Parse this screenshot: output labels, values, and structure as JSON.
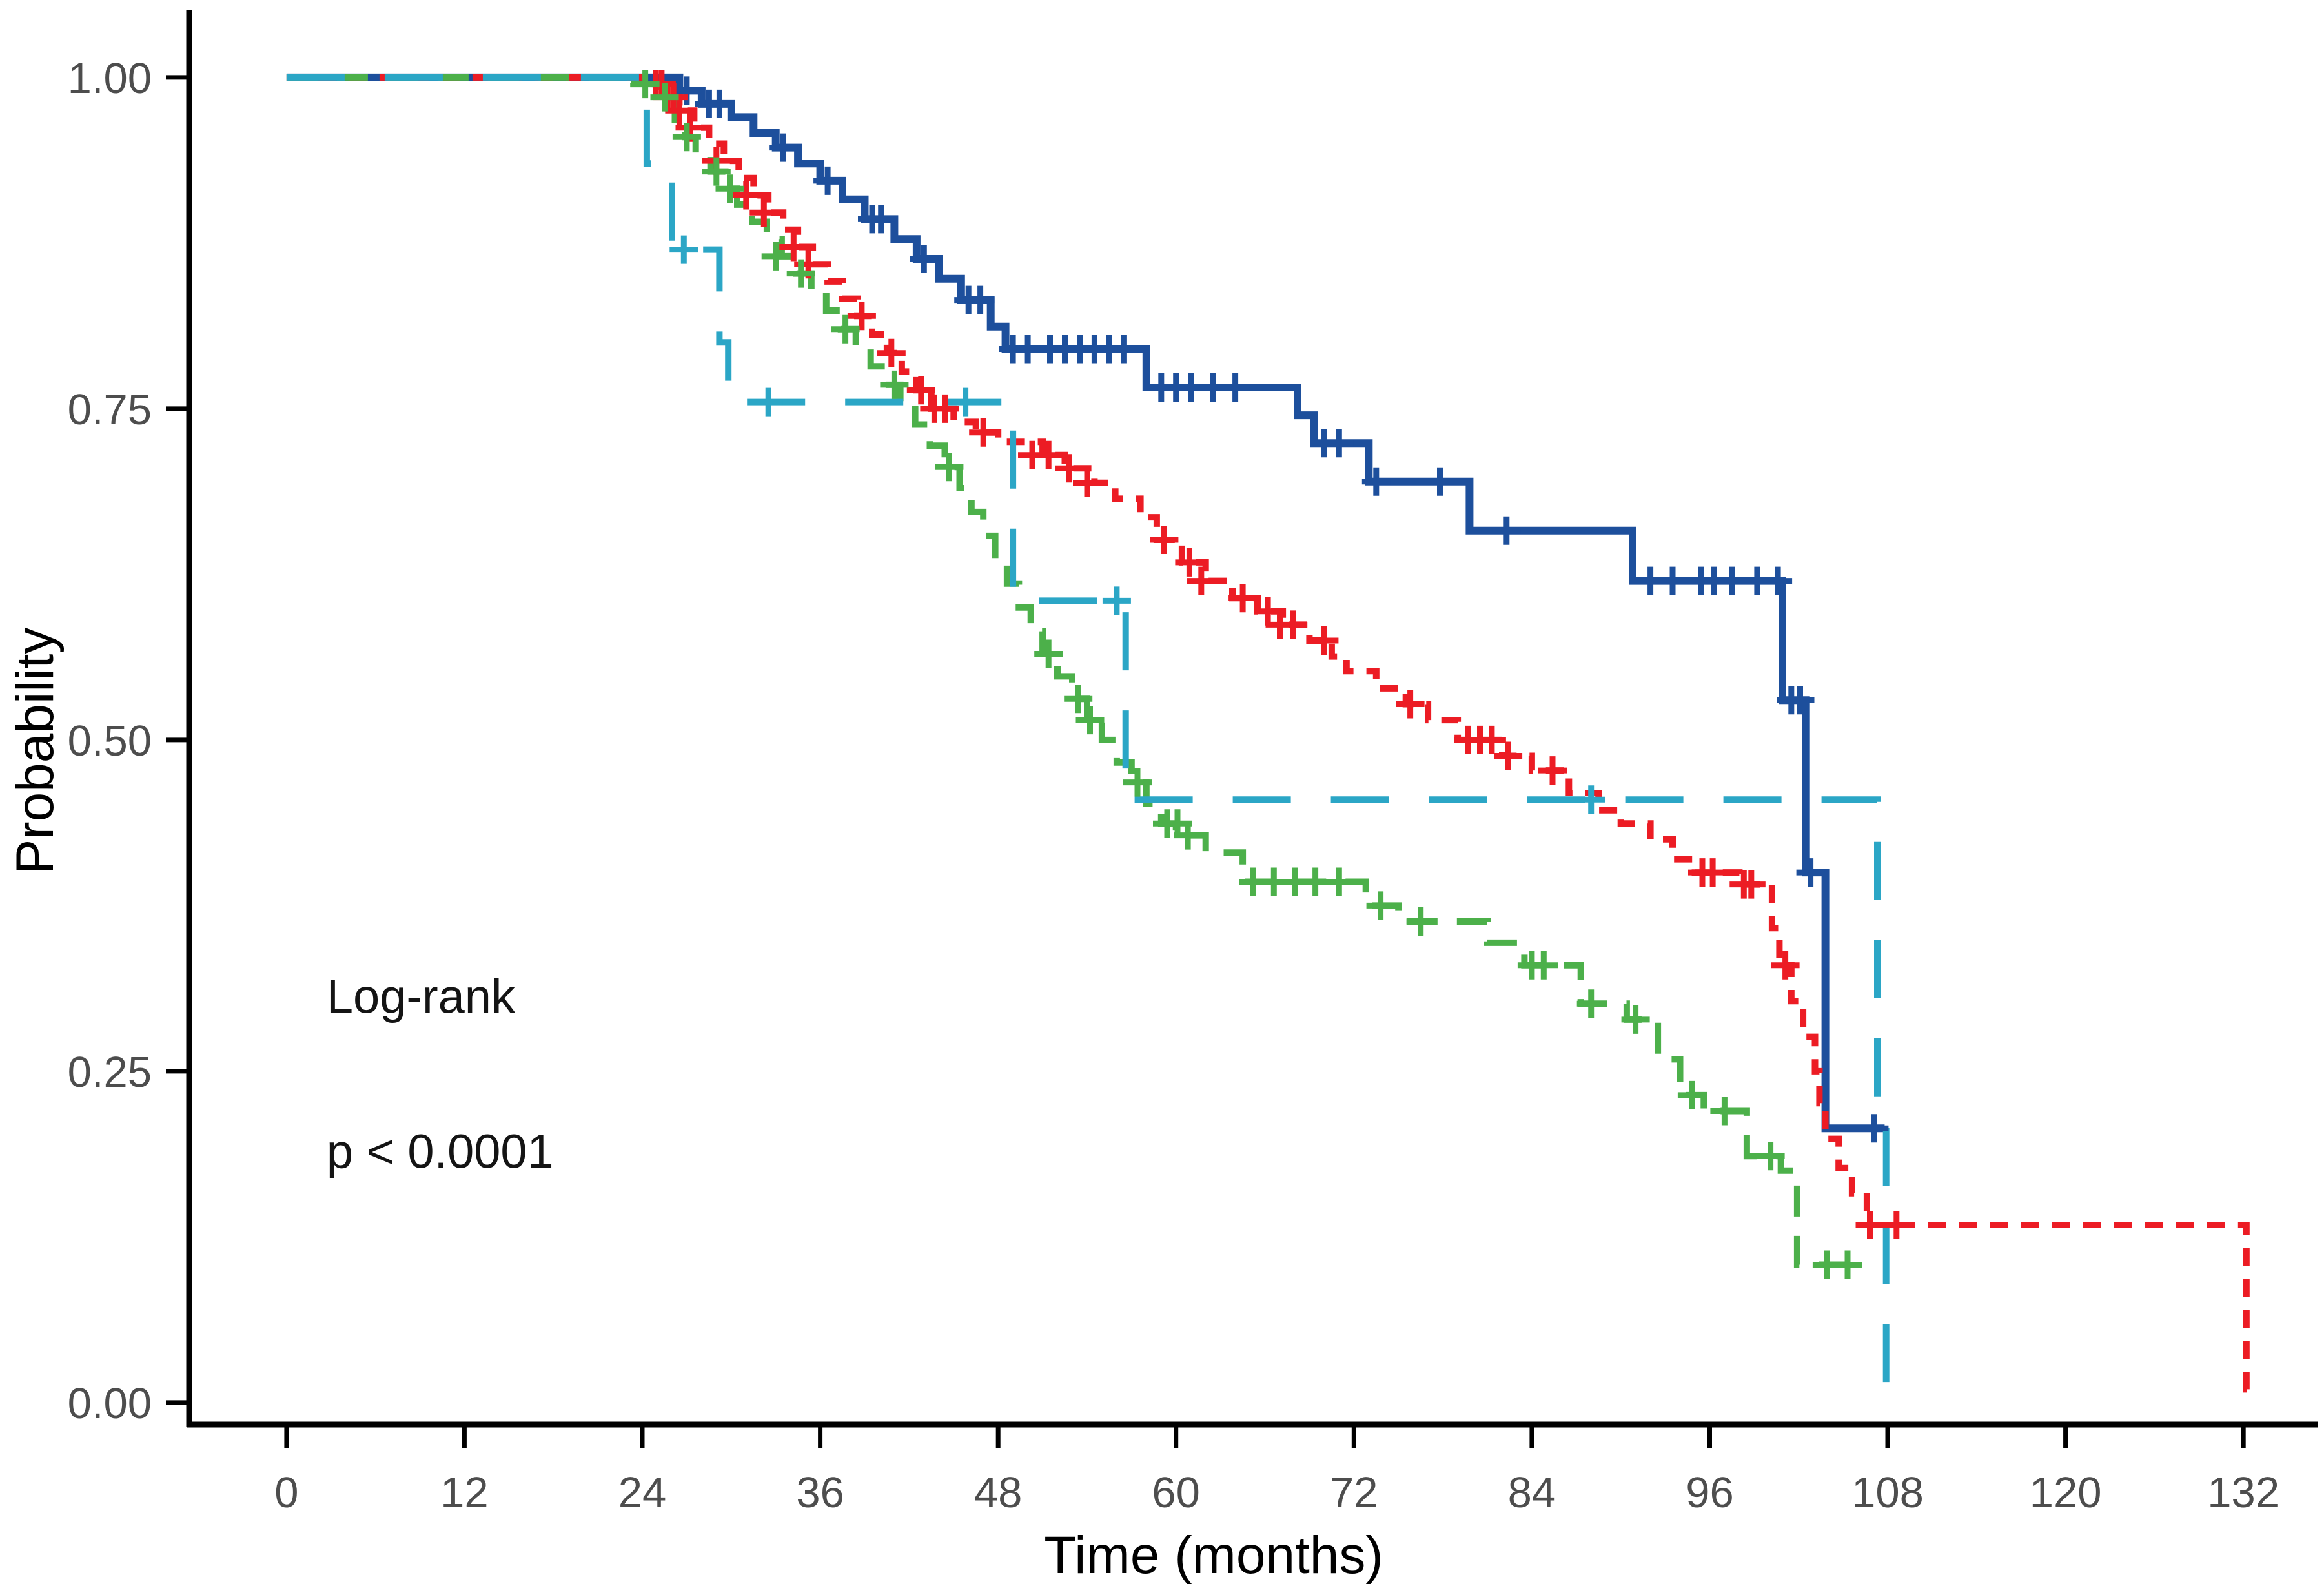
{
  "chart_data": {
    "type": "line",
    "subtype": "kaplan-meier-step",
    "title": "",
    "xlabel": "Time (months)",
    "ylabel": "Probability",
    "x_ticks": [
      0,
      12,
      24,
      36,
      48,
      60,
      72,
      84,
      96,
      108,
      120,
      132
    ],
    "y_ticks": [
      {
        "value": 0.0,
        "label": "0.00"
      },
      {
        "value": 0.25,
        "label": "0.25"
      },
      {
        "value": 0.5,
        "label": "0.50"
      },
      {
        "value": 0.75,
        "label": "0.75"
      },
      {
        "value": 1.0,
        "label": "1.00"
      }
    ],
    "xlim": [
      -6.57,
      137.0
    ],
    "ylim": [
      -0.0166,
      1.0511
    ],
    "grid": false,
    "legend_position": "none",
    "axis_color": "#000000",
    "tick_label_color": "#4d4d4d",
    "annotations": [
      {
        "text": "Log-rank",
        "x_month": 2.7,
        "y_prob": 0.294
      },
      {
        "text": "p < 0.0001",
        "x_month": 2.7,
        "y_prob": 0.177
      }
    ],
    "series": [
      {
        "id": "navy-solid",
        "color": "#1d4f9c",
        "dash": "",
        "stroke_width": 12,
        "points": [
          [
            0,
            1.0
          ],
          [
            26.5,
            0.99
          ],
          [
            28,
            0.98
          ],
          [
            30,
            0.97
          ],
          [
            31.5,
            0.958
          ],
          [
            33,
            0.947
          ],
          [
            34.5,
            0.935
          ],
          [
            36,
            0.922
          ],
          [
            37.5,
            0.908
          ],
          [
            39,
            0.893
          ],
          [
            41,
            0.878
          ],
          [
            42.5,
            0.863
          ],
          [
            44,
            0.848
          ],
          [
            45.5,
            0.832
          ],
          [
            47.5,
            0.812
          ],
          [
            48.5,
            0.795
          ],
          [
            58,
            0.766
          ],
          [
            68.2,
            0.745
          ],
          [
            69.3,
            0.724
          ],
          [
            73,
            0.695
          ],
          [
            79.8,
            0.658
          ],
          [
            90.8,
            0.62
          ],
          [
            100.9,
            0.53
          ],
          [
            102.5,
            0.4
          ],
          [
            103.8,
            0.207
          ]
        ],
        "end": 107.8,
        "censors": [
          [
            27,
            0.99
          ],
          [
            28.5,
            0.98
          ],
          [
            29.2,
            0.98
          ],
          [
            33.5,
            0.947
          ],
          [
            36.5,
            0.922
          ],
          [
            39.5,
            0.893
          ],
          [
            40.1,
            0.893
          ],
          [
            43,
            0.863
          ],
          [
            46,
            0.832
          ],
          [
            46.8,
            0.832
          ],
          [
            49,
            0.795
          ],
          [
            50,
            0.795
          ],
          [
            51.5,
            0.795
          ],
          [
            52.5,
            0.795
          ],
          [
            53.5,
            0.795
          ],
          [
            54.5,
            0.795
          ],
          [
            55.5,
            0.795
          ],
          [
            56.5,
            0.795
          ],
          [
            59,
            0.766
          ],
          [
            60,
            0.766
          ],
          [
            61,
            0.766
          ],
          [
            62.5,
            0.766
          ],
          [
            64,
            0.766
          ],
          [
            70,
            0.724
          ],
          [
            71,
            0.724
          ],
          [
            73.5,
            0.695
          ],
          [
            77.8,
            0.695
          ],
          [
            82.3,
            0.658
          ],
          [
            92,
            0.62
          ],
          [
            93.5,
            0.62
          ],
          [
            95.4,
            0.62
          ],
          [
            96.3,
            0.62
          ],
          [
            97.5,
            0.62
          ],
          [
            99.2,
            0.62
          ],
          [
            100.6,
            0.62
          ],
          [
            101.5,
            0.53
          ],
          [
            102.1,
            0.53
          ],
          [
            102.8,
            0.4
          ],
          [
            107.1,
            0.207
          ]
        ]
      },
      {
        "id": "red-dotted",
        "color": "#ec1c24",
        "dash": "28 20",
        "stroke_width": 10,
        "points": [
          [
            0,
            1.0
          ],
          [
            24.5,
            0.995
          ],
          [
            25.5,
            0.985
          ],
          [
            26.5,
            0.975
          ],
          [
            27.5,
            0.962
          ],
          [
            28.5,
            0.95
          ],
          [
            29.5,
            0.937
          ],
          [
            30.5,
            0.924
          ],
          [
            31.5,
            0.911
          ],
          [
            32.5,
            0.898
          ],
          [
            33.5,
            0.885
          ],
          [
            34.5,
            0.872
          ],
          [
            35.5,
            0.859
          ],
          [
            36.5,
            0.846
          ],
          [
            37.5,
            0.833
          ],
          [
            38.5,
            0.82
          ],
          [
            39.5,
            0.806
          ],
          [
            40.5,
            0.792
          ],
          [
            41.5,
            0.778
          ],
          [
            42.5,
            0.764
          ],
          [
            43.5,
            0.75
          ],
          [
            45,
            0.74
          ],
          [
            46.5,
            0.732
          ],
          [
            48,
            0.725
          ],
          [
            51,
            0.715
          ],
          [
            52.5,
            0.705
          ],
          [
            54.5,
            0.694
          ],
          [
            55.9,
            0.682
          ],
          [
            57.6,
            0.668
          ],
          [
            58.7,
            0.651
          ],
          [
            60.4,
            0.634
          ],
          [
            62,
            0.62
          ],
          [
            63.8,
            0.607
          ],
          [
            65.5,
            0.597
          ],
          [
            67.2,
            0.587
          ],
          [
            69,
            0.575
          ],
          [
            70.5,
            0.563
          ],
          [
            71.5,
            0.552
          ],
          [
            73.5,
            0.539
          ],
          [
            75.5,
            0.527
          ],
          [
            77,
            0.515
          ],
          [
            79,
            0.5
          ],
          [
            82,
            0.488
          ],
          [
            84,
            0.477
          ],
          [
            86.5,
            0.46
          ],
          [
            88.5,
            0.447
          ],
          [
            90,
            0.437
          ],
          [
            92,
            0.425
          ],
          [
            93.5,
            0.41
          ],
          [
            95,
            0.4
          ],
          [
            98,
            0.391
          ],
          [
            100.2,
            0.358
          ],
          [
            100.7,
            0.33
          ],
          [
            101.5,
            0.303
          ],
          [
            102.3,
            0.276
          ],
          [
            103.1,
            0.25
          ],
          [
            103.4,
            0.226
          ],
          [
            103.8,
            0.199
          ],
          [
            104.7,
            0.177
          ],
          [
            105.6,
            0.158
          ],
          [
            106.6,
            0.134
          ],
          [
            132.2,
            0.01
          ]
        ],
        "end": 132.5,
        "censors": [
          [
            24.9,
            0.995
          ],
          [
            25.3,
            0.995
          ],
          [
            25.7,
            0.985
          ],
          [
            26.1,
            0.985
          ],
          [
            26.5,
            0.975
          ],
          [
            27.2,
            0.962
          ],
          [
            29,
            0.937
          ],
          [
            31,
            0.911
          ],
          [
            32.2,
            0.898
          ],
          [
            34.2,
            0.872
          ],
          [
            35.2,
            0.859
          ],
          [
            38.8,
            0.82
          ],
          [
            40.8,
            0.792
          ],
          [
            42.8,
            0.764
          ],
          [
            43.7,
            0.75
          ],
          [
            44.4,
            0.75
          ],
          [
            47,
            0.732
          ],
          [
            50.3,
            0.715
          ],
          [
            51.4,
            0.715
          ],
          [
            52.8,
            0.705
          ],
          [
            54,
            0.694
          ],
          [
            59.2,
            0.651
          ],
          [
            60.9,
            0.634
          ],
          [
            61.7,
            0.62
          ],
          [
            64.5,
            0.607
          ],
          [
            66.2,
            0.597
          ],
          [
            67,
            0.587
          ],
          [
            67.9,
            0.587
          ],
          [
            70,
            0.575
          ],
          [
            75.8,
            0.527
          ],
          [
            79.7,
            0.5
          ],
          [
            80.5,
            0.5
          ],
          [
            81.3,
            0.5
          ],
          [
            82.4,
            0.488
          ],
          [
            85.4,
            0.477
          ],
          [
            95.5,
            0.4
          ],
          [
            96.2,
            0.4
          ],
          [
            98.3,
            0.391
          ],
          [
            98.8,
            0.391
          ],
          [
            101.1,
            0.33
          ],
          [
            106.8,
            0.134
          ],
          [
            108.6,
            0.134
          ]
        ]
      },
      {
        "id": "green-dashed",
        "color": "#4cb04a",
        "dash": "48 30",
        "stroke_width": 10,
        "points": [
          [
            0,
            1.0
          ],
          [
            23.4,
            0.995
          ],
          [
            25,
            0.985
          ],
          [
            26.2,
            0.968
          ],
          [
            26.9,
            0.955
          ],
          [
            27.6,
            0.942
          ],
          [
            28.6,
            0.929
          ],
          [
            29.6,
            0.916
          ],
          [
            30.4,
            0.904
          ],
          [
            31.4,
            0.891
          ],
          [
            32.4,
            0.878
          ],
          [
            33.4,
            0.865
          ],
          [
            34.4,
            0.852
          ],
          [
            35.4,
            0.838
          ],
          [
            36.4,
            0.824
          ],
          [
            37.4,
            0.81
          ],
          [
            38.4,
            0.796
          ],
          [
            39.4,
            0.782
          ],
          [
            40.4,
            0.768
          ],
          [
            41.4,
            0.754
          ],
          [
            42.4,
            0.738
          ],
          [
            43.4,
            0.722
          ],
          [
            44.4,
            0.706
          ],
          [
            45.4,
            0.69
          ],
          [
            46.2,
            0.672
          ],
          [
            47,
            0.654
          ],
          [
            47.8,
            0.636
          ],
          [
            48.6,
            0.618
          ],
          [
            49.4,
            0.6
          ],
          [
            50.2,
            0.582
          ],
          [
            51,
            0.565
          ],
          [
            52,
            0.548
          ],
          [
            53,
            0.531
          ],
          [
            54,
            0.515
          ],
          [
            55,
            0.5
          ],
          [
            56,
            0.483
          ],
          [
            57,
            0.468
          ],
          [
            58,
            0.452
          ],
          [
            59,
            0.437
          ],
          [
            60,
            0.428
          ],
          [
            62,
            0.415
          ],
          [
            64.5,
            0.393
          ],
          [
            72.8,
            0.375
          ],
          [
            75,
            0.363
          ],
          [
            81,
            0.347
          ],
          [
            83.5,
            0.33
          ],
          [
            87.3,
            0.301
          ],
          [
            90.4,
            0.289
          ],
          [
            92.5,
            0.259
          ],
          [
            94,
            0.232
          ],
          [
            95.6,
            0.22
          ],
          [
            98.5,
            0.186
          ],
          [
            100.8,
            0.175
          ],
          [
            101.9,
            0.104
          ]
        ],
        "end": 106.3,
        "censors": [
          [
            24.2,
            0.995
          ],
          [
            25.5,
            0.985
          ],
          [
            27,
            0.955
          ],
          [
            29,
            0.929
          ],
          [
            29.9,
            0.916
          ],
          [
            33,
            0.865
          ],
          [
            34.7,
            0.852
          ],
          [
            37.7,
            0.81
          ],
          [
            41,
            0.768
          ],
          [
            44.7,
            0.706
          ],
          [
            51.4,
            0.565
          ],
          [
            53.4,
            0.531
          ],
          [
            54.2,
            0.515
          ],
          [
            57.4,
            0.468
          ],
          [
            59.4,
            0.437
          ],
          [
            60.1,
            0.437
          ],
          [
            60.8,
            0.428
          ],
          [
            65.2,
            0.393
          ],
          [
            66.6,
            0.393
          ],
          [
            68,
            0.393
          ],
          [
            69.4,
            0.393
          ],
          [
            71,
            0.393
          ],
          [
            73.8,
            0.375
          ],
          [
            76.5,
            0.363
          ],
          [
            84,
            0.33
          ],
          [
            84.8,
            0.33
          ],
          [
            88,
            0.301
          ],
          [
            91,
            0.289
          ],
          [
            94.8,
            0.232
          ],
          [
            97,
            0.22
          ],
          [
            100.1,
            0.186
          ],
          [
            103.9,
            0.104
          ],
          [
            105.3,
            0.104
          ]
        ]
      },
      {
        "id": "cyan-longdash",
        "color": "#2ba6c6",
        "dash": "90 62",
        "stroke_width": 10,
        "points": [
          [
            0,
            1.0
          ],
          [
            24.3,
            0.935
          ],
          [
            26,
            0.87
          ],
          [
            29.2,
            0.8
          ],
          [
            29.8,
            0.755
          ],
          [
            49,
            0.605
          ],
          [
            56.6,
            0.455
          ],
          [
            107.3,
            0.23
          ],
          [
            107.9,
            0.012
          ]
        ],
        "end": 108.2,
        "censors": [
          [
            26.8,
            0.87
          ],
          [
            32.5,
            0.755
          ],
          [
            45.8,
            0.755
          ],
          [
            56,
            0.605
          ],
          [
            88,
            0.455
          ]
        ]
      }
    ]
  }
}
